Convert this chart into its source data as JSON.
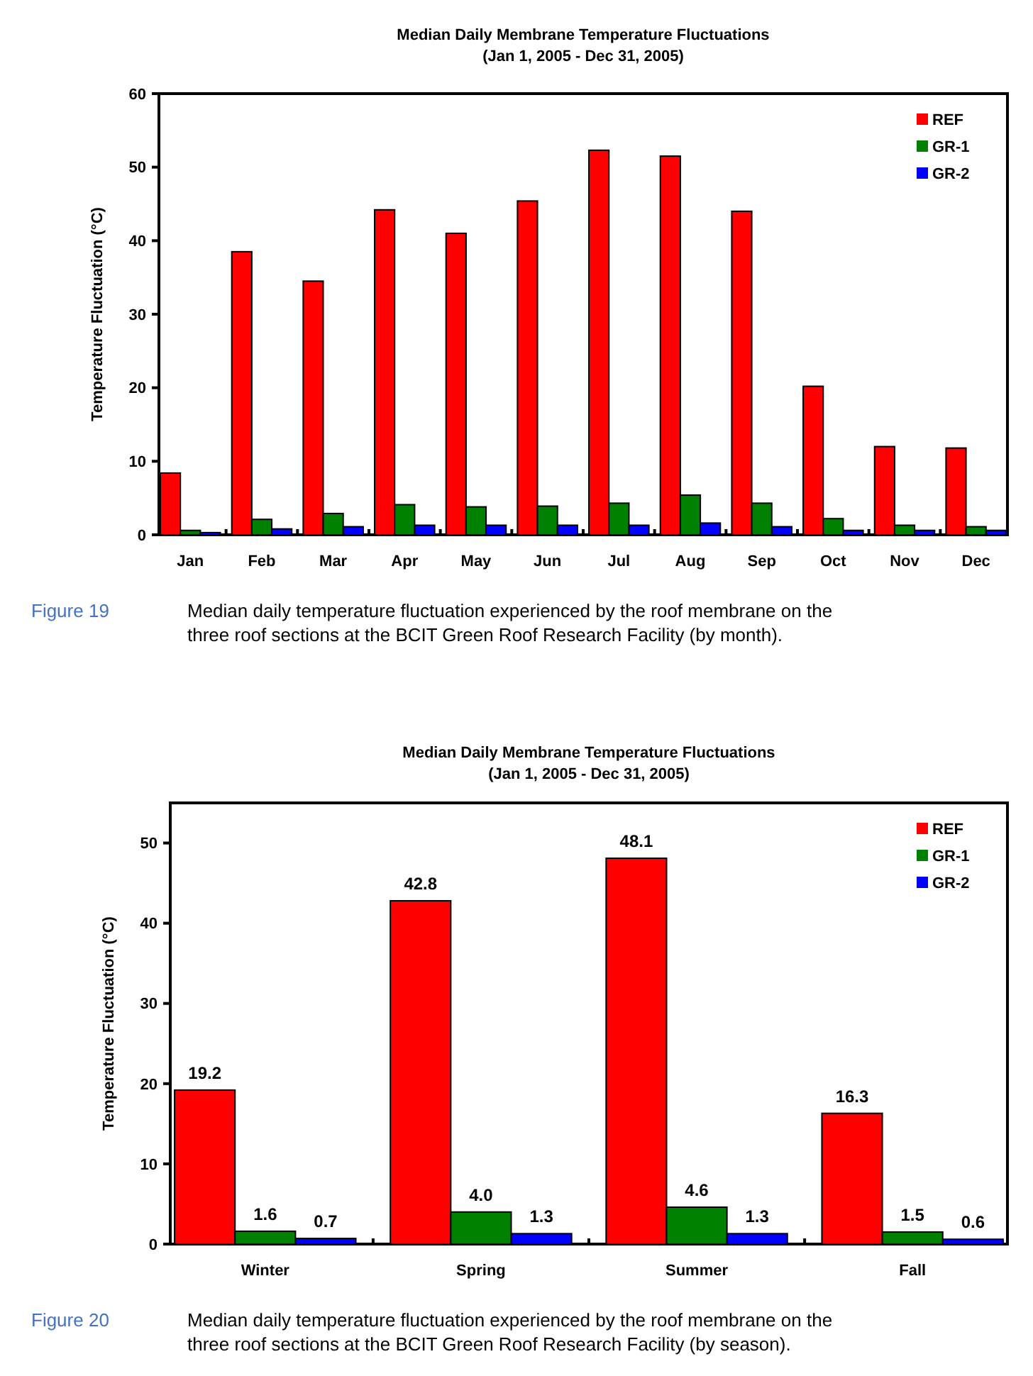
{
  "chart_data": [
    {
      "type": "bar",
      "title": "Median Daily Membrane Temperature Fluctuations",
      "subtitle": "(Jan 1, 2005 - Dec 31, 2005)",
      "ylabel": "Temperature Fluctuation (°C)",
      "categories": [
        "Jan",
        "Feb",
        "Mar",
        "Apr",
        "May",
        "Jun",
        "Jul",
        "Aug",
        "Sep",
        "Oct",
        "Nov",
        "Dec"
      ],
      "series": [
        {
          "name": "REF",
          "color": "#ff0000",
          "values": [
            8.4,
            38.5,
            34.5,
            44.2,
            41,
            45.4,
            52.3,
            51.5,
            44,
            20.2,
            12,
            11.8
          ]
        },
        {
          "name": "GR-1",
          "color": "#008000",
          "values": [
            0.6,
            2.1,
            2.9,
            4.1,
            3.8,
            3.9,
            4.3,
            5.4,
            4.3,
            2.2,
            1.3,
            1.1
          ]
        },
        {
          "name": "GR-2",
          "color": "#0000ff",
          "values": [
            0.3,
            0.8,
            1.1,
            1.3,
            1.3,
            1.3,
            1.3,
            1.6,
            1.1,
            0.6,
            0.6,
            0.6
          ]
        }
      ],
      "ylim": [
        0,
        60
      ],
      "yticks": [
        0,
        10,
        20,
        30,
        40,
        50,
        60
      ],
      "grid": false,
      "legend": "top right",
      "annotations": [
        "Figure 19",
        "Median daily temperature fluctuation experienced by the roof membrane on the three roof sections at the BCIT Green Roof Research Facility (by month)."
      ]
    },
    {
      "type": "bar",
      "title": "Median Daily Membrane Temperature Fluctuations",
      "subtitle": "(Jan 1, 2005 - Dec 31, 2005)",
      "ylabel": "Temperature Fluctuation (°C)",
      "categories": [
        "Winter",
        "Spring",
        "Summer",
        "Fall"
      ],
      "series": [
        {
          "name": "REF",
          "color": "#ff0000",
          "values": [
            19.2,
            42.8,
            48.1,
            16.3
          ],
          "value_labels": [
            "19.2",
            "42.8",
            "48.1",
            "16.3"
          ]
        },
        {
          "name": "GR-1",
          "color": "#008000",
          "values": [
            1.6,
            4.0,
            4.6,
            1.5
          ],
          "value_labels": [
            "1.6",
            "4.0",
            "4.6",
            "1.5"
          ]
        },
        {
          "name": "GR-2",
          "color": "#0000ff",
          "values": [
            0.7,
            1.3,
            1.3,
            0.6
          ],
          "value_labels": [
            "0.7",
            "1.3",
            "1.3",
            "0.6"
          ]
        }
      ],
      "ylim": [
        0,
        55
      ],
      "yticks": [
        0,
        10,
        20,
        30,
        40,
        50
      ],
      "grid": false,
      "legend": "top right",
      "annotations": [
        "Figure 20",
        "Median daily temperature fluctuation experienced by the roof membrane on the three roof sections at the BCIT Green Roof Research Facility (by season)."
      ]
    }
  ]
}
